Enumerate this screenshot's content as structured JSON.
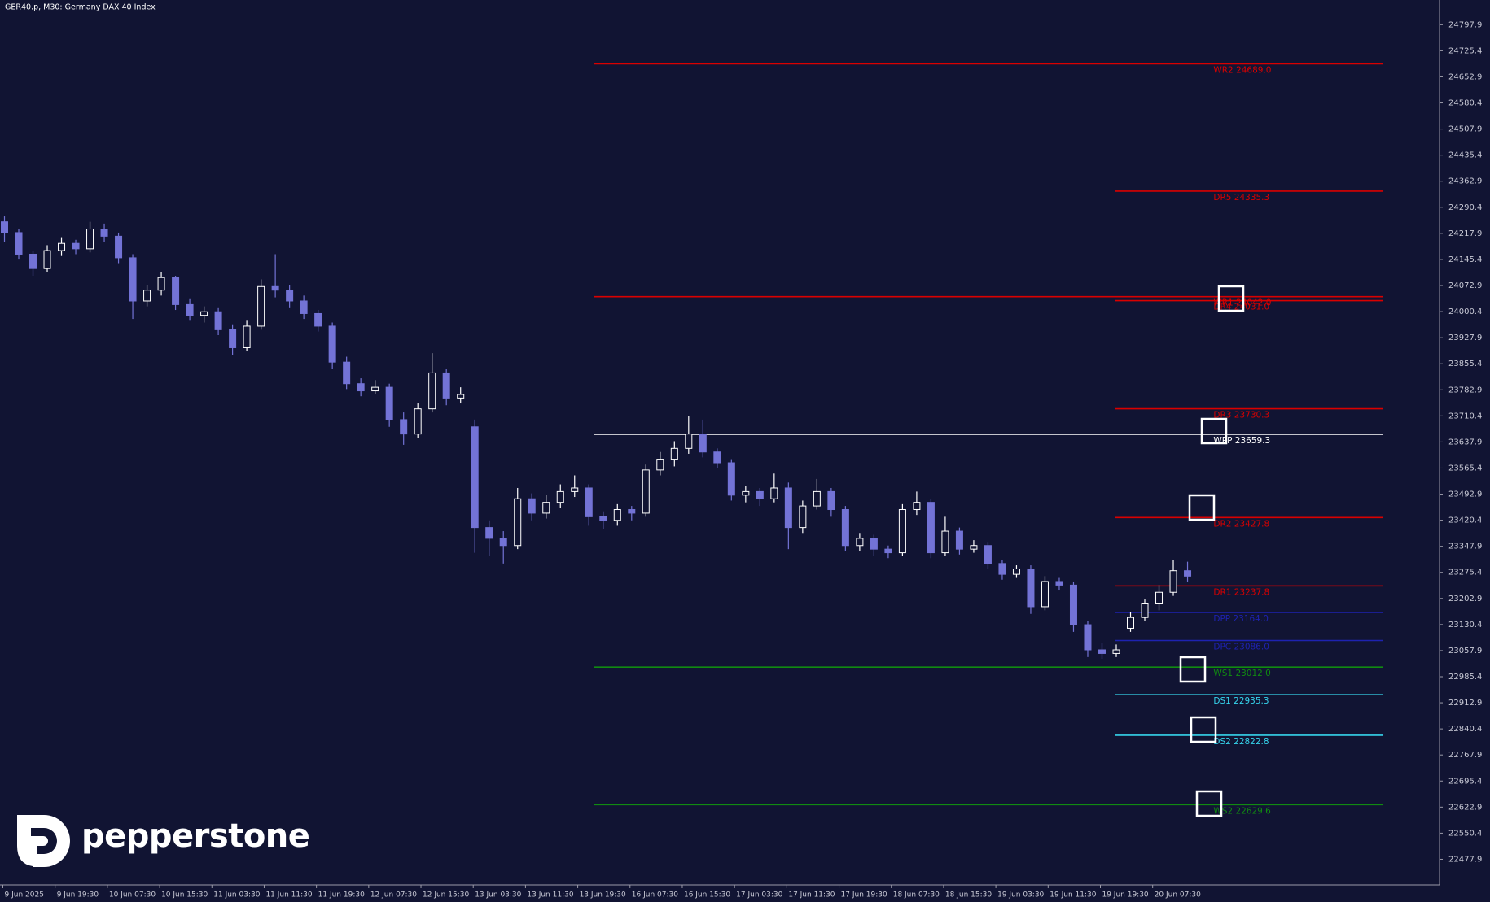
{
  "chart_data": {
    "type": "candlestick",
    "title": "GER40.p, M30:  Germany DAX 40 Index",
    "brand": "pepperstone",
    "up_color": "#ffffff",
    "down_color": "#7373d6",
    "ylim": [
      22406.6,
      24866.5
    ],
    "yticks": [
      24797.9,
      24725.4,
      24652.9,
      24580.4,
      24507.9,
      24435.4,
      24362.9,
      24290.4,
      24217.9,
      24145.4,
      24072.9,
      24000.4,
      23927.9,
      23855.4,
      23782.9,
      23710.4,
      23637.9,
      23565.4,
      23492.9,
      23420.4,
      23347.9,
      23275.4,
      23202.9,
      23130.4,
      23057.9,
      22985.4,
      22912.9,
      22840.4,
      22767.9,
      22695.4,
      22622.9,
      22550.4,
      22477.9
    ],
    "categories": [
      "9 Jun 2025",
      "9 Jun 19:30",
      "10 Jun 07:30",
      "10 Jun 15:30",
      "11 Jun 03:30",
      "11 Jun 11:30",
      "11 Jun 19:30",
      "12 Jun 07:30",
      "12 Jun 15:30",
      "13 Jun 03:30",
      "13 Jun 11:30",
      "13 Jun 19:30",
      "16 Jun 07:30",
      "16 Jun 15:30",
      "17 Jun 03:30",
      "17 Jun 11:30",
      "17 Jun 19:30",
      "18 Jun 07:30",
      "18 Jun 15:30",
      "19 Jun 03:30",
      "19 Jun 11:30",
      "19 Jun 19:30",
      "20 Jun 07:30"
    ],
    "candles": [
      [
        24250,
        24265,
        24195,
        24220
      ],
      [
        24220,
        24230,
        24145,
        24160
      ],
      [
        24160,
        24170,
        24100,
        24120
      ],
      [
        24120,
        24185,
        24110,
        24170
      ],
      [
        24170,
        24205,
        24155,
        24190
      ],
      [
        24190,
        24200,
        24160,
        24175
      ],
      [
        24175,
        24250,
        24165,
        24230
      ],
      [
        24230,
        24245,
        24195,
        24210
      ],
      [
        24210,
        24220,
        24135,
        24150
      ],
      [
        24150,
        24160,
        23980,
        24030
      ],
      [
        24030,
        24075,
        24015,
        24060
      ],
      [
        24060,
        24110,
        24045,
        24095
      ],
      [
        24095,
        24100,
        24005,
        24020
      ],
      [
        24020,
        24035,
        23975,
        23990
      ],
      [
        23990,
        24015,
        23970,
        24000
      ],
      [
        24000,
        24010,
        23935,
        23950
      ],
      [
        23950,
        23965,
        23880,
        23900
      ],
      [
        23900,
        23975,
        23890,
        23960
      ],
      [
        23960,
        24090,
        23950,
        24070
      ],
      [
        24070,
        24160,
        24040,
        24060
      ],
      [
        24060,
        24075,
        24010,
        24030
      ],
      [
        24030,
        24045,
        23980,
        23995
      ],
      [
        23995,
        24005,
        23945,
        23960
      ],
      [
        23960,
        23970,
        23840,
        23860
      ],
      [
        23860,
        23875,
        23785,
        23800
      ],
      [
        23800,
        23815,
        23765,
        23780
      ],
      [
        23780,
        23810,
        23770,
        23790
      ],
      [
        23790,
        23800,
        23680,
        23700
      ],
      [
        23700,
        23720,
        23630,
        23660
      ],
      [
        23660,
        23745,
        23650,
        23730
      ],
      [
        23730,
        23885,
        23720,
        23830
      ],
      [
        23830,
        23840,
        23740,
        23760
      ],
      [
        23760,
        23790,
        23745,
        23770
      ],
      [
        23680,
        23700,
        23330,
        23400
      ],
      [
        23400,
        23420,
        23320,
        23370
      ],
      [
        23370,
        23390,
        23300,
        23350
      ],
      [
        23350,
        23510,
        23340,
        23480
      ],
      [
        23480,
        23495,
        23420,
        23440
      ],
      [
        23440,
        23490,
        23425,
        23470
      ],
      [
        23470,
        23520,
        23455,
        23500
      ],
      [
        23500,
        23545,
        23485,
        23510
      ],
      [
        23510,
        23520,
        23405,
        23430
      ],
      [
        23430,
        23445,
        23395,
        23420
      ],
      [
        23420,
        23465,
        23405,
        23450
      ],
      [
        23450,
        23460,
        23420,
        23440
      ],
      [
        23440,
        23575,
        23430,
        23560
      ],
      [
        23560,
        23610,
        23545,
        23590
      ],
      [
        23590,
        23640,
        23570,
        23620
      ],
      [
        23620,
        23710,
        23605,
        23660
      ],
      [
        23660,
        23700,
        23595,
        23610
      ],
      [
        23610,
        23620,
        23565,
        23580
      ],
      [
        23580,
        23590,
        23475,
        23490
      ],
      [
        23490,
        23515,
        23470,
        23500
      ],
      [
        23500,
        23510,
        23460,
        23480
      ],
      [
        23480,
        23550,
        23470,
        23510
      ],
      [
        23510,
        23525,
        23340,
        23400
      ],
      [
        23400,
        23475,
        23385,
        23460
      ],
      [
        23460,
        23535,
        23450,
        23500
      ],
      [
        23500,
        23510,
        23430,
        23450
      ],
      [
        23450,
        23460,
        23335,
        23350
      ],
      [
        23350,
        23385,
        23335,
        23370
      ],
      [
        23370,
        23380,
        23320,
        23340
      ],
      [
        23340,
        23350,
        23315,
        23330
      ],
      [
        23330,
        23465,
        23320,
        23450
      ],
      [
        23450,
        23500,
        23435,
        23470
      ],
      [
        23470,
        23480,
        23315,
        23330
      ],
      [
        23330,
        23430,
        23320,
        23390
      ],
      [
        23390,
        23400,
        23325,
        23340
      ],
      [
        23340,
        23365,
        23330,
        23350
      ],
      [
        23350,
        23360,
        23285,
        23300
      ],
      [
        23300,
        23310,
        23255,
        23270
      ],
      [
        23270,
        23295,
        23260,
        23285
      ],
      [
        23285,
        23295,
        23160,
        23180
      ],
      [
        23180,
        23265,
        23170,
        23250
      ],
      [
        23250,
        23260,
        23225,
        23240
      ],
      [
        23240,
        23250,
        23110,
        23130
      ],
      [
        23130,
        23140,
        23040,
        23060
      ],
      [
        23060,
        23080,
        23035,
        23050
      ],
      [
        23050,
        23075,
        23040,
        23060
      ],
      [
        23120,
        23165,
        23110,
        23150
      ],
      [
        23150,
        23200,
        23140,
        23190
      ],
      [
        23190,
        23240,
        23170,
        23220
      ],
      [
        23220,
        23310,
        23210,
        23280
      ],
      [
        23280,
        23305,
        23250,
        23265
      ]
    ],
    "levels": [
      {
        "name": "WR2",
        "value": 24689.0,
        "label": "WR2 24689.0",
        "color": "#d90000"
      },
      {
        "name": "DR5",
        "value": 24335.3,
        "label": "DR5 24335.3",
        "color": "#d90000"
      },
      {
        "name": "WR1",
        "value": 24042.0,
        "label": "WR1 24042.0",
        "color": "#d90000"
      },
      {
        "name": "DR4",
        "value": 24031.0,
        "label": "DR4 24031.0",
        "color": "#d90000"
      },
      {
        "name": "DR3",
        "value": 23730.3,
        "label": "DR3 23730.3",
        "color": "#d90000"
      },
      {
        "name": "WPP",
        "value": 23659.3,
        "label": "WPP 23659.3",
        "color": "#ffffff"
      },
      {
        "name": "DR2",
        "value": 23427.8,
        "label": "DR2 23427.8",
        "color": "#d90000"
      },
      {
        "name": "DR1",
        "value": 23237.8,
        "label": "DR1 23237.8",
        "color": "#d90000"
      },
      {
        "name": "DPP",
        "value": 23164.0,
        "label": "DPP 23164.0",
        "color": "#1e22b0"
      },
      {
        "name": "DPC",
        "value": 23086.0,
        "label": "DPC 23086.0",
        "color": "#1e22b0"
      },
      {
        "name": "WS1",
        "value": 23012.0,
        "label": "WS1 23012.0",
        "color": "#118a11"
      },
      {
        "name": "DS1",
        "value": 22935.3,
        "label": "DS1 22935.3",
        "color": "#36d4ec"
      },
      {
        "name": "DS2",
        "value": 22822.8,
        "label": "DS2 22822.8",
        "color": "#36d4ec"
      },
      {
        "name": "WS2",
        "value": 22629.6,
        "label": "WS2 22629.6",
        "color": "#118a11"
      }
    ]
  }
}
